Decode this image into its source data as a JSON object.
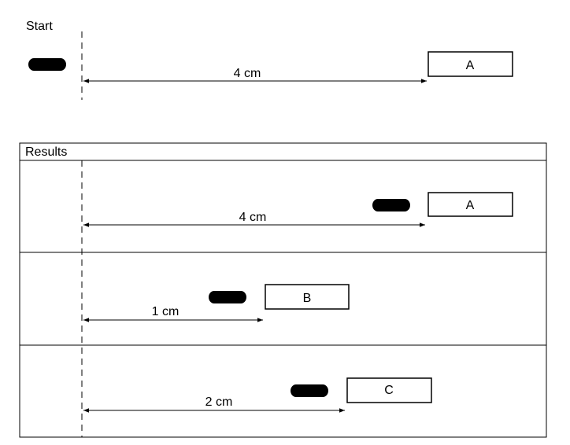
{
  "start": {
    "label": "Start",
    "magnet": "A",
    "distance": "4 cm"
  },
  "results": {
    "label": "Results",
    "rows": [
      {
        "magnet": "A",
        "distance": "4 cm"
      },
      {
        "magnet": "B",
        "distance": "1 cm"
      },
      {
        "magnet": "C",
        "distance": "2 cm"
      }
    ]
  },
  "icons": {
    "paperclip": "paperclip-icon"
  },
  "colors": {
    "ink": "#000000",
    "background": "#ffffff"
  }
}
